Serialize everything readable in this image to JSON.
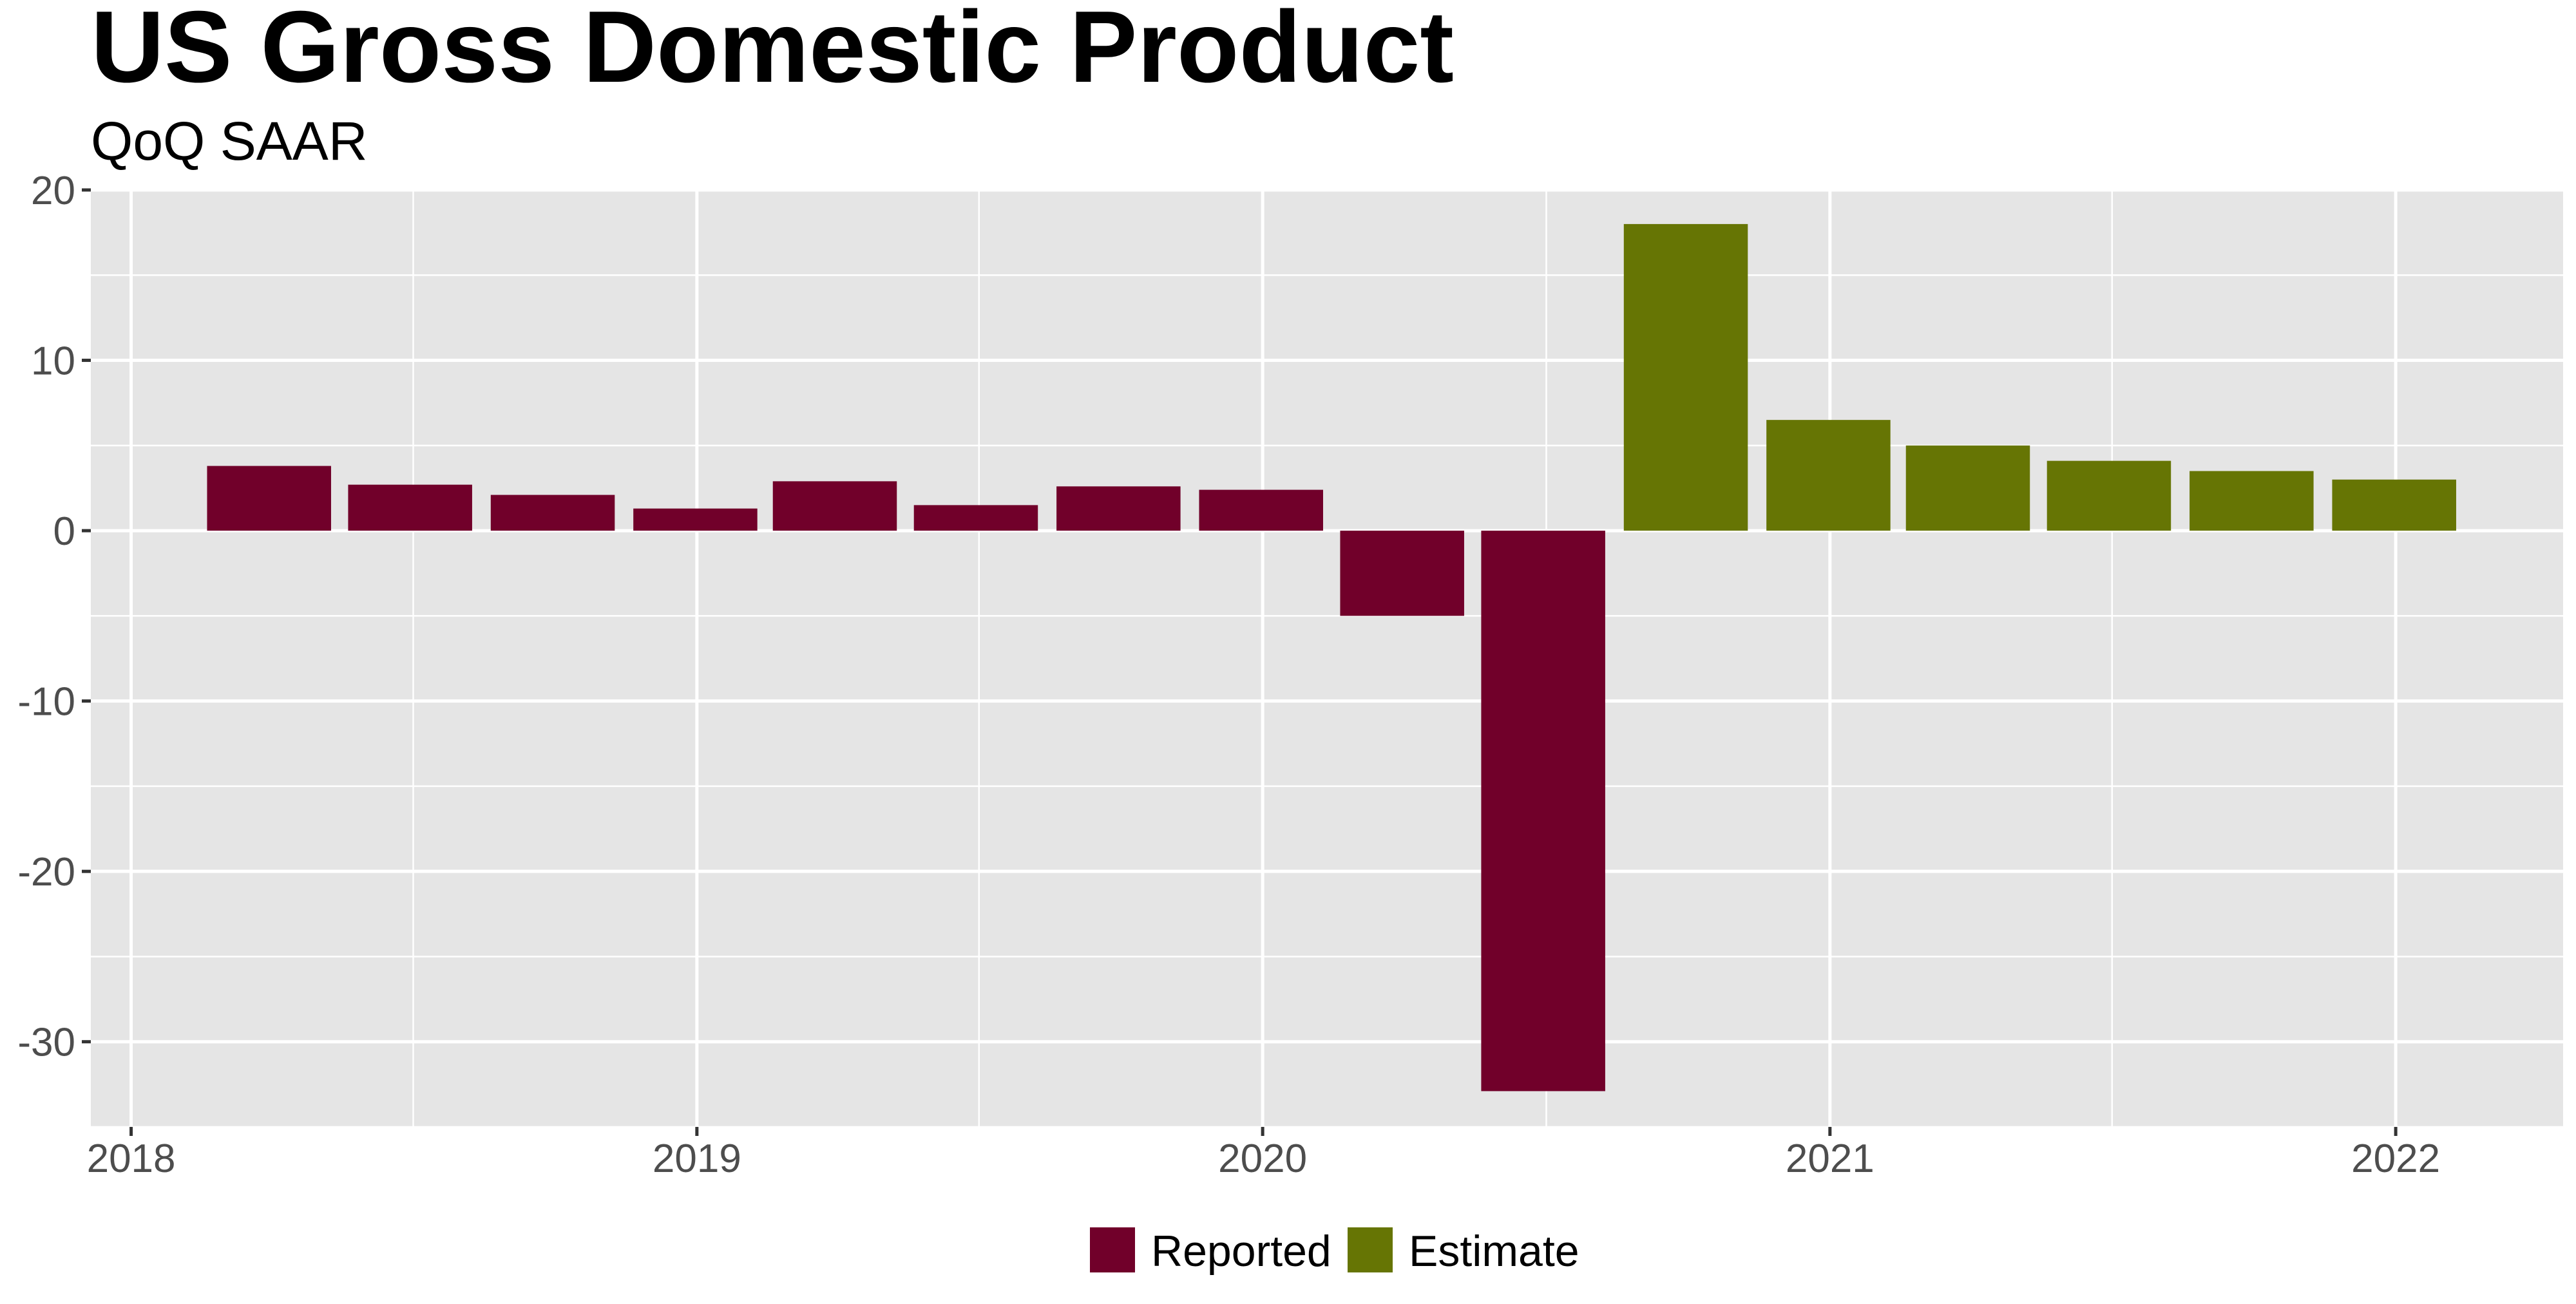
{
  "chart_data": {
    "type": "bar",
    "title": "US Gross Domestic Product",
    "subtitle": "QoQ SAAR",
    "xlabel": "",
    "ylabel": "",
    "ylim": [
      -35,
      20
    ],
    "yticks": [
      -30,
      -20,
      -10,
      0,
      10,
      20
    ],
    "xticks": [
      "2018",
      "2019",
      "2020",
      "2021",
      "2022"
    ],
    "x_range": [
      "2017-12-06",
      "2022-04-19"
    ],
    "grid": true,
    "legend_position": "bottom",
    "categories": [
      "2018-03-31",
      "2018-06-30",
      "2018-09-30",
      "2018-12-31",
      "2019-03-31",
      "2019-06-30",
      "2019-09-30",
      "2019-12-31",
      "2020-03-31",
      "2020-06-30",
      "2020-09-30",
      "2020-12-31",
      "2021-03-31",
      "2021-06-30",
      "2021-09-30",
      "2021-12-31"
    ],
    "values": [
      3.8,
      2.7,
      2.1,
      1.3,
      2.9,
      1.5,
      2.6,
      2.4,
      -5.0,
      -32.9,
      18.0,
      6.5,
      5.0,
      4.1,
      3.5,
      3.0
    ],
    "groups": [
      "Reported",
      "Reported",
      "Reported",
      "Reported",
      "Reported",
      "Reported",
      "Reported",
      "Reported",
      "Reported",
      "Reported",
      "Estimate",
      "Estimate",
      "Estimate",
      "Estimate",
      "Estimate",
      "Estimate"
    ],
    "legend": [
      {
        "name": "Reported",
        "color": "#71002A"
      },
      {
        "name": "Estimate",
        "color": "#667504"
      }
    ],
    "colors": {
      "panel_background": "#E5E5E5",
      "grid": "#FFFFFF",
      "tick_text": "#4D4D4D"
    }
  }
}
